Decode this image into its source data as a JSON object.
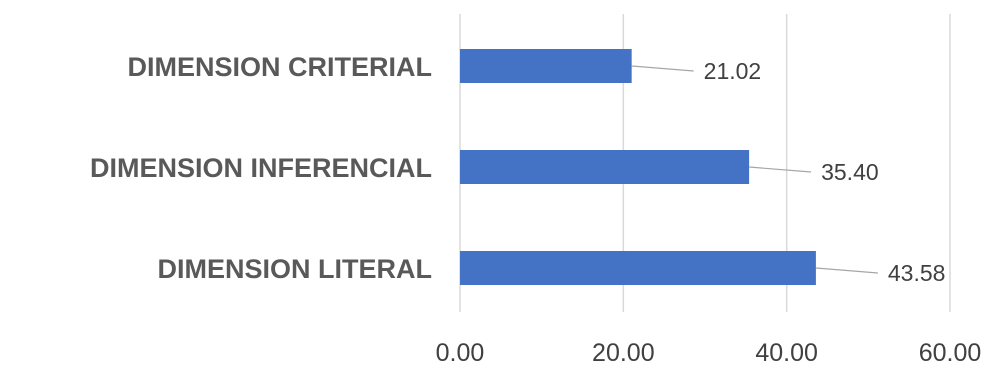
{
  "chart_data": {
    "type": "bar",
    "orientation": "horizontal",
    "categories": [
      "DIMENSION CRITERIAL",
      "DIMENSION INFERENCIAL",
      "DIMENSION LITERAL"
    ],
    "values": [
      21.02,
      35.4,
      43.58
    ],
    "data_labels": [
      "21.02",
      "35.40",
      "43.58"
    ],
    "xlim": [
      0,
      60
    ],
    "x_ticks": [
      0,
      20,
      40,
      60
    ],
    "x_tick_labels": [
      "0.00",
      "20.00",
      "40.00",
      "60.00"
    ],
    "title": "",
    "xlabel": "",
    "ylabel": "",
    "grid": "vertical",
    "legend": "none",
    "bar_color": "#4472C4"
  }
}
